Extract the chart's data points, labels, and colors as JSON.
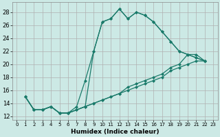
{
  "title": "",
  "xlabel": "Humidex (Indice chaleur)",
  "ylabel": "",
  "background_color": "#cce9e5",
  "grid_color": "#b0b0b0",
  "line_color": "#1a7a6a",
  "marker": "D",
  "markersize": 2,
  "linewidth": 0.9,
  "xlim": [
    -0.5,
    23.5
  ],
  "ylim": [
    11.5,
    29.5
  ],
  "xticks": [
    0,
    1,
    2,
    3,
    4,
    5,
    6,
    7,
    8,
    9,
    10,
    11,
    12,
    13,
    14,
    15,
    16,
    17,
    18,
    19,
    20,
    21,
    22,
    23
  ],
  "yticks": [
    12,
    14,
    16,
    18,
    20,
    22,
    24,
    26,
    28
  ],
  "series0_x": [
    1,
    2,
    3,
    4,
    5,
    6,
    7,
    8,
    9,
    10,
    11,
    12,
    13,
    14,
    15,
    16,
    17,
    18,
    19,
    20,
    21,
    22
  ],
  "series0_y": [
    15,
    13,
    13,
    13.5,
    12.5,
    12.5,
    13,
    13.5,
    22,
    26.5,
    27,
    28.5,
    27,
    28,
    27.5,
    26.5,
    25,
    23.5,
    22,
    21.5,
    21,
    20.5
  ],
  "series1_x": [
    1,
    2,
    3,
    4,
    5,
    6,
    7,
    8,
    9,
    10,
    11,
    12,
    13,
    14,
    15,
    16,
    17,
    18,
    19,
    20,
    21,
    22
  ],
  "series1_y": [
    15,
    13,
    13,
    13.5,
    12.5,
    12.5,
    13.5,
    17.5,
    22,
    26.5,
    27,
    28.5,
    27,
    28,
    27.5,
    26.5,
    25,
    23.5,
    22,
    21.5,
    21,
    20.5
  ],
  "series2_x": [
    1,
    2,
    3,
    4,
    5,
    6,
    7,
    8,
    9,
    10,
    11,
    12,
    13,
    14,
    15,
    16,
    17,
    18,
    19,
    20,
    21,
    22
  ],
  "series2_y": [
    15,
    13,
    13,
    13.5,
    12.5,
    12.5,
    13,
    13.5,
    14.0,
    14.5,
    15.0,
    15.5,
    16.5,
    17.0,
    17.5,
    18.0,
    18.5,
    19.5,
    20.0,
    21.5,
    21.5,
    20.5
  ],
  "series3_x": [
    1,
    2,
    3,
    4,
    5,
    6,
    7,
    8,
    9,
    10,
    11,
    12,
    13,
    14,
    15,
    16,
    17,
    18,
    19,
    20,
    21,
    22
  ],
  "series3_y": [
    15,
    13,
    13,
    13.5,
    12.5,
    12.5,
    13,
    13.5,
    14.0,
    14.5,
    15.0,
    15.5,
    16.0,
    16.5,
    17.0,
    17.5,
    18.0,
    19.0,
    19.5,
    20.0,
    20.5,
    20.5
  ]
}
